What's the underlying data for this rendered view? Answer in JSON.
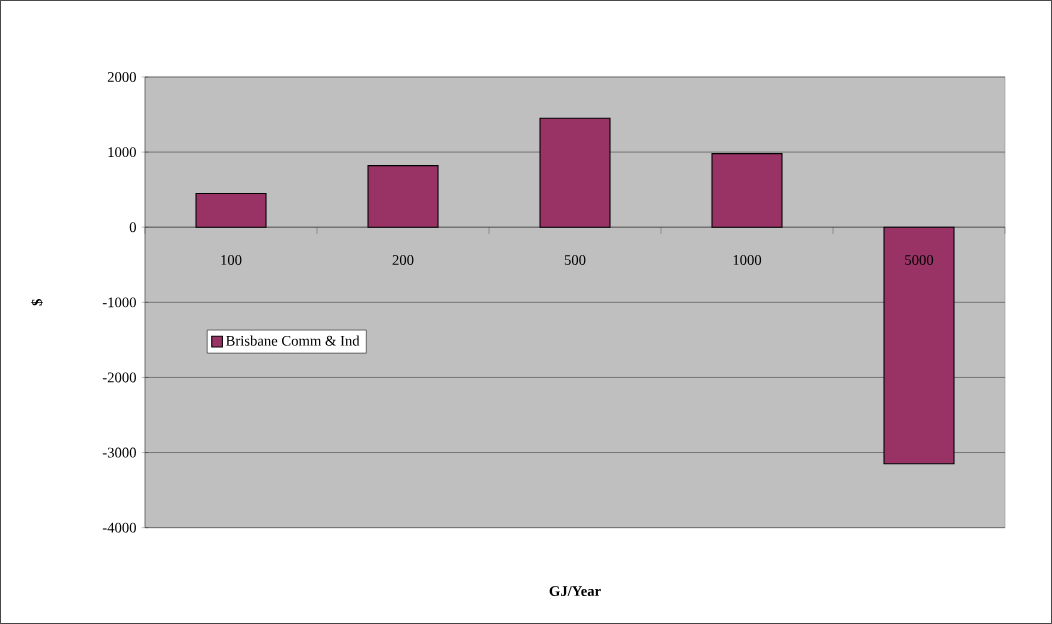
{
  "chart_data": {
    "type": "bar",
    "xlabel": "GJ/Year",
    "ylabel": "$",
    "categories": [
      "100",
      "200",
      "500",
      "1000",
      "5000"
    ],
    "series": [
      {
        "name": "Brisbane Comm & Ind",
        "color": "#993366",
        "values": [
          450,
          820,
          1450,
          980,
          -3150
        ]
      }
    ],
    "ylim": [
      -4000,
      2000
    ],
    "yticks": [
      -4000,
      -3000,
      -2000,
      -1000,
      0,
      1000,
      2000
    ],
    "grid": "y",
    "legend": "left"
  }
}
